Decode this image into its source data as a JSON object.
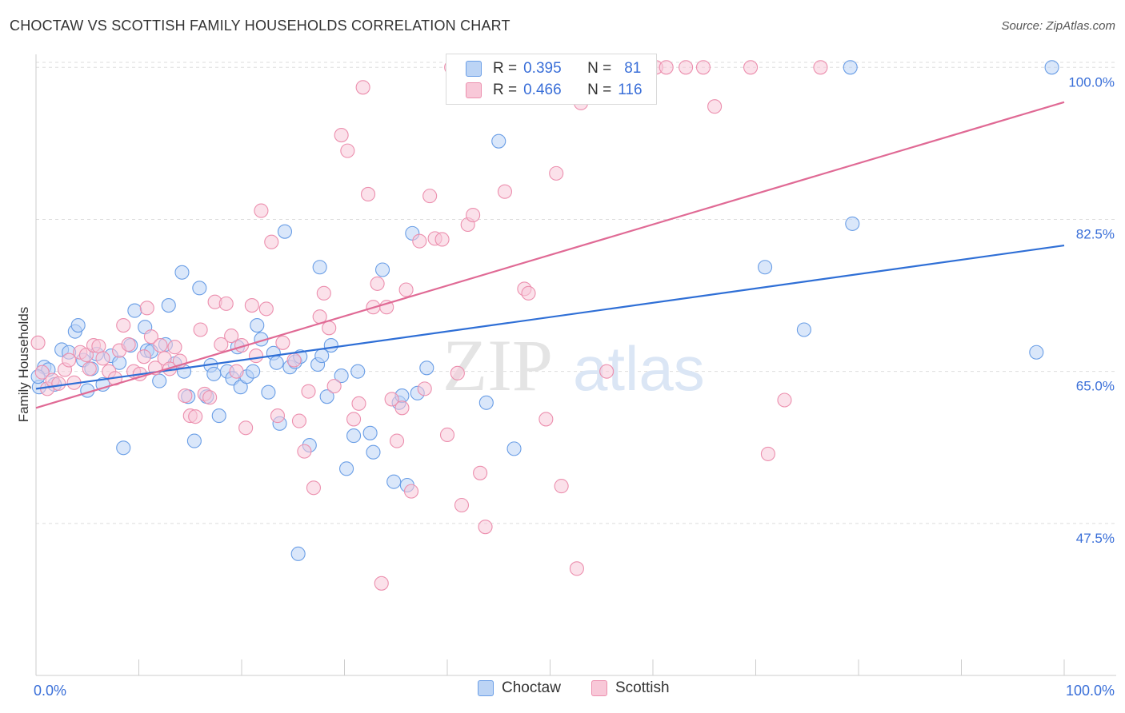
{
  "title": "CHOCTAW VS SCOTTISH FAMILY HOUSEHOLDS CORRELATION CHART",
  "source": "Source: ZipAtlas.com",
  "watermark": {
    "zip": "ZIP",
    "atlas": "atlas"
  },
  "colors": {
    "choctaw_fill": "#bcd4f5",
    "choctaw_stroke": "#6a9ee6",
    "choctaw_line": "#2f6fd6",
    "scottish_fill": "#f8c8d8",
    "scottish_stroke": "#ec8fae",
    "scottish_line": "#e06a95",
    "tick_label": "#3a6fd8",
    "grid": "#dddddd"
  },
  "legend": {
    "rows": [
      {
        "r_label": "R =",
        "r_value": "0.395",
        "n_label": "N =",
        "n_value": "81"
      },
      {
        "r_label": "R =",
        "r_value": "0.466",
        "n_label": "N =",
        "n_value": "116"
      }
    ],
    "bottom": [
      "Choctaw",
      "Scottish"
    ]
  },
  "chart_data": {
    "type": "scatter",
    "title": "CHOCTAW VS SCOTTISH FAMILY HOUSEHOLDS CORRELATION CHART",
    "xlabel": "",
    "ylabel": "Family Households",
    "xlim": [
      0,
      100
    ],
    "ylim": [
      30,
      101.5
    ],
    "x_tick_labels": [
      {
        "value": 0,
        "label": "0.0%"
      },
      {
        "value": 100,
        "label": "100.0%"
      }
    ],
    "y_ticks": [
      {
        "value": 100,
        "label": "100.0%"
      },
      {
        "value": 82.5,
        "label": "82.5%"
      },
      {
        "value": 65,
        "label": "65.0%"
      },
      {
        "value": 47.5,
        "label": "47.5%"
      }
    ],
    "grid": true,
    "legend_position": "top-center",
    "series": [
      {
        "name": "Choctaw",
        "R": 0.395,
        "N": 81,
        "trend": {
          "x": [
            0,
            100
          ],
          "y": [
            63.0,
            79.5
          ]
        },
        "points": [
          [
            0.3,
            63.2
          ],
          [
            0.8,
            65.5
          ],
          [
            1.2,
            65.2
          ],
          [
            1.8,
            63.5
          ],
          [
            2.5,
            67.5
          ],
          [
            3.2,
            67.2
          ],
          [
            3.8,
            69.6
          ],
          [
            4.1,
            70.3
          ],
          [
            4.6,
            66.3
          ],
          [
            5.0,
            62.8
          ],
          [
            5.4,
            65.3
          ],
          [
            5.9,
            67.0
          ],
          [
            6.5,
            63.5
          ],
          [
            7.3,
            66.8
          ],
          [
            8.1,
            66.0
          ],
          [
            9.2,
            68.0
          ],
          [
            9.6,
            72.0
          ],
          [
            10.6,
            70.1
          ],
          [
            10.8,
            67.4
          ],
          [
            11.2,
            67.3
          ],
          [
            12.0,
            63.9
          ],
          [
            12.6,
            68.1
          ],
          [
            12.9,
            72.6
          ],
          [
            13.5,
            65.9
          ],
          [
            14.2,
            76.4
          ],
          [
            14.4,
            65.0
          ],
          [
            14.8,
            62.1
          ],
          [
            15.4,
            57.0
          ],
          [
            15.9,
            74.6
          ],
          [
            16.6,
            62.1
          ],
          [
            17.0,
            65.7
          ],
          [
            17.3,
            64.7
          ],
          [
            17.8,
            59.9
          ],
          [
            18.6,
            65.0
          ],
          [
            19.1,
            64.2
          ],
          [
            19.6,
            67.8
          ],
          [
            19.9,
            63.2
          ],
          [
            20.5,
            64.4
          ],
          [
            21.1,
            65.0
          ],
          [
            21.5,
            70.3
          ],
          [
            21.9,
            68.7
          ],
          [
            22.6,
            62.6
          ],
          [
            23.1,
            67.1
          ],
          [
            23.4,
            66.0
          ],
          [
            23.7,
            59.0
          ],
          [
            24.2,
            81.1
          ],
          [
            24.7,
            65.5
          ],
          [
            25.2,
            66.1
          ],
          [
            25.7,
            66.7
          ],
          [
            26.6,
            56.5
          ],
          [
            27.4,
            65.8
          ],
          [
            27.6,
            77.0
          ],
          [
            27.8,
            66.8
          ],
          [
            28.3,
            62.1
          ],
          [
            28.7,
            68.0
          ],
          [
            29.7,
            64.5
          ],
          [
            30.2,
            53.8
          ],
          [
            30.9,
            57.6
          ],
          [
            31.3,
            65.0
          ],
          [
            32.5,
            57.9
          ],
          [
            32.8,
            55.7
          ],
          [
            33.7,
            76.7
          ],
          [
            34.8,
            52.3
          ],
          [
            35.3,
            61.4
          ],
          [
            35.6,
            62.2
          ],
          [
            36.1,
            51.9
          ],
          [
            36.6,
            80.9
          ],
          [
            37.1,
            62.5
          ],
          [
            38.0,
            65.4
          ],
          [
            43.8,
            61.4
          ],
          [
            45.0,
            91.5
          ],
          [
            46.5,
            56.1
          ],
          [
            25.5,
            44.0
          ],
          [
            8.5,
            56.2
          ],
          [
            70.9,
            77.0
          ],
          [
            74.7,
            69.8
          ],
          [
            79.4,
            82.0
          ],
          [
            79.2,
            100.0
          ],
          [
            97.3,
            67.2
          ],
          [
            98.8,
            100.0
          ],
          [
            0.2,
            64.4
          ]
        ]
      },
      {
        "name": "Scottish",
        "R": 0.466,
        "N": 116,
        "trend": {
          "x": [
            0,
            100
          ],
          "y": [
            60.8,
            96.0
          ]
        },
        "points": [
          [
            0.2,
            68.3
          ],
          [
            0.6,
            64.9
          ],
          [
            1.1,
            63.0
          ],
          [
            1.6,
            64.0
          ],
          [
            2.2,
            63.6
          ],
          [
            2.8,
            65.2
          ],
          [
            3.2,
            66.3
          ],
          [
            3.7,
            63.7
          ],
          [
            4.3,
            67.2
          ],
          [
            4.9,
            66.9
          ],
          [
            5.2,
            65.3
          ],
          [
            5.6,
            68.0
          ],
          [
            6.1,
            67.9
          ],
          [
            6.5,
            66.5
          ],
          [
            7.1,
            65.0
          ],
          [
            7.7,
            64.2
          ],
          [
            8.1,
            67.4
          ],
          [
            8.5,
            70.3
          ],
          [
            9.0,
            68.1
          ],
          [
            9.5,
            65.0
          ],
          [
            10.1,
            64.7
          ],
          [
            10.5,
            66.7
          ],
          [
            10.8,
            72.3
          ],
          [
            11.2,
            69.0
          ],
          [
            11.6,
            65.4
          ],
          [
            12.1,
            68.0
          ],
          [
            12.5,
            66.5
          ],
          [
            13.0,
            65.3
          ],
          [
            13.5,
            67.8
          ],
          [
            14.0,
            66.2
          ],
          [
            14.5,
            62.2
          ],
          [
            15.0,
            59.9
          ],
          [
            15.5,
            59.8
          ],
          [
            16.0,
            69.8
          ],
          [
            16.4,
            62.4
          ],
          [
            16.9,
            62.0
          ],
          [
            17.4,
            73.0
          ],
          [
            18.0,
            68.1
          ],
          [
            18.5,
            72.8
          ],
          [
            19.0,
            69.1
          ],
          [
            19.5,
            65.0
          ],
          [
            20.0,
            68.0
          ],
          [
            20.4,
            58.5
          ],
          [
            21.0,
            72.6
          ],
          [
            21.4,
            66.8
          ],
          [
            21.9,
            83.5
          ],
          [
            22.4,
            72.2
          ],
          [
            22.9,
            79.9
          ],
          [
            23.5,
            59.9
          ],
          [
            24.0,
            68.3
          ],
          [
            25.1,
            66.3
          ],
          [
            25.6,
            59.3
          ],
          [
            26.1,
            55.8
          ],
          [
            26.5,
            62.7
          ],
          [
            27.0,
            51.6
          ],
          [
            27.6,
            71.3
          ],
          [
            28.0,
            74.0
          ],
          [
            28.5,
            70.0
          ],
          [
            29.0,
            63.3
          ],
          [
            29.7,
            92.2
          ],
          [
            30.3,
            90.4
          ],
          [
            30.9,
            59.5
          ],
          [
            31.4,
            61.3
          ],
          [
            31.8,
            97.7
          ],
          [
            32.3,
            85.4
          ],
          [
            32.8,
            72.4
          ],
          [
            33.2,
            75.1
          ],
          [
            33.6,
            40.6
          ],
          [
            34.1,
            72.4
          ],
          [
            34.6,
            61.8
          ],
          [
            35.1,
            57.0
          ],
          [
            35.6,
            60.8
          ],
          [
            36.0,
            74.4
          ],
          [
            36.5,
            51.2
          ],
          [
            37.3,
            80.0
          ],
          [
            37.8,
            63.0
          ],
          [
            38.3,
            85.2
          ],
          [
            38.8,
            80.3
          ],
          [
            39.5,
            80.2
          ],
          [
            40.0,
            57.7
          ],
          [
            40.4,
            100.0
          ],
          [
            41.0,
            64.8
          ],
          [
            41.4,
            49.6
          ],
          [
            42.0,
            81.9
          ],
          [
            42.5,
            83.0
          ],
          [
            43.2,
            53.3
          ],
          [
            43.7,
            47.1
          ],
          [
            44.1,
            100.0
          ],
          [
            44.6,
            100.0
          ],
          [
            45.1,
            100.0
          ],
          [
            45.6,
            85.7
          ],
          [
            46.5,
            100.0
          ],
          [
            47.5,
            74.5
          ],
          [
            47.9,
            74.0
          ],
          [
            48.5,
            100.0
          ],
          [
            49.0,
            100.0
          ],
          [
            49.6,
            59.5
          ],
          [
            50.2,
            100.0
          ],
          [
            50.6,
            87.8
          ],
          [
            51.1,
            51.8
          ],
          [
            52.1,
            100.0
          ],
          [
            52.6,
            42.3
          ],
          [
            53.0,
            95.9
          ],
          [
            54.8,
            100.0
          ],
          [
            55.5,
            65.0
          ],
          [
            56.2,
            100.0
          ],
          [
            59.0,
            100.0
          ],
          [
            60.3,
            100.0
          ],
          [
            61.3,
            100.0
          ],
          [
            63.2,
            100.0
          ],
          [
            66.0,
            95.5
          ],
          [
            64.9,
            100.0
          ],
          [
            69.5,
            100.0
          ],
          [
            71.2,
            55.5
          ],
          [
            72.8,
            61.7
          ],
          [
            76.3,
            100.0
          ]
        ]
      }
    ]
  }
}
